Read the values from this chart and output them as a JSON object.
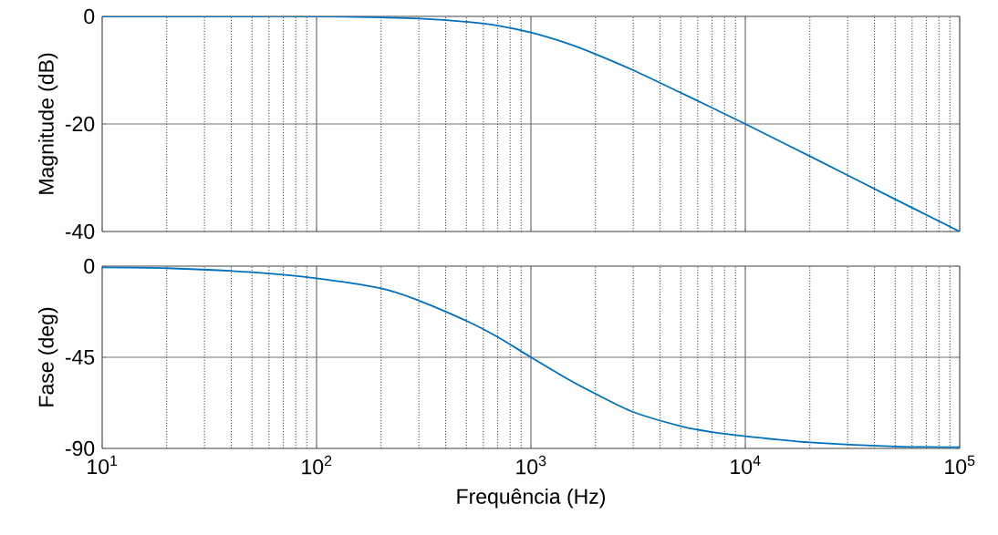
{
  "chart_data": [
    {
      "type": "line",
      "ylabel": "Magnitude (dB)",
      "log": "x",
      "xlim": [
        10,
        100000
      ],
      "xticks": [
        10,
        100,
        1000,
        10000,
        100000
      ],
      "ylim": [
        -40,
        0
      ],
      "yticks": [
        -40,
        -20,
        0
      ],
      "tick_labels": "y",
      "grid": true,
      "x": [
        10,
        20,
        50,
        100,
        200,
        300,
        500,
        700,
        1000,
        1500,
        2000,
        3000,
        5000,
        7000,
        10000,
        20000,
        50000,
        100000
      ],
      "series": [
        {
          "color": "#0072bd",
          "values": [
            0,
            0,
            0,
            0,
            -0.2,
            -0.4,
            -1,
            -1.7,
            -3,
            -5.1,
            -7,
            -10,
            -14.2,
            -17,
            -20,
            -26,
            -34,
            -40
          ]
        }
      ]
    },
    {
      "type": "line",
      "ylabel": "Fase (deg)",
      "xlabel": "Frequência (Hz)",
      "log": "x",
      "xlim": [
        10,
        100000
      ],
      "xticks": [
        {
          "value": 10,
          "label": "10$^{1}$"
        },
        {
          "value": 100,
          "label": "10$^{2}$"
        },
        {
          "value": 1000,
          "label": "10$^{3}$"
        },
        {
          "value": 10000,
          "label": "10$^{4}$"
        },
        {
          "value": 100000,
          "label": "10$^{5}$"
        }
      ],
      "ylim": [
        -90,
        0
      ],
      "yticks": [
        -90,
        -45,
        0
      ],
      "grid": true,
      "x": [
        10,
        20,
        50,
        100,
        200,
        300,
        500,
        700,
        1000,
        1500,
        2000,
        3000,
        5000,
        7000,
        10000,
        20000,
        50000,
        100000
      ],
      "series": [
        {
          "color": "#0072bd",
          "values": [
            -0.6,
            -1,
            -3,
            -6,
            -11,
            -17,
            -27,
            -35,
            -45,
            -56,
            -63,
            -72,
            -79,
            -82,
            -84,
            -87,
            -89,
            -89.4
          ]
        }
      ]
    }
  ]
}
